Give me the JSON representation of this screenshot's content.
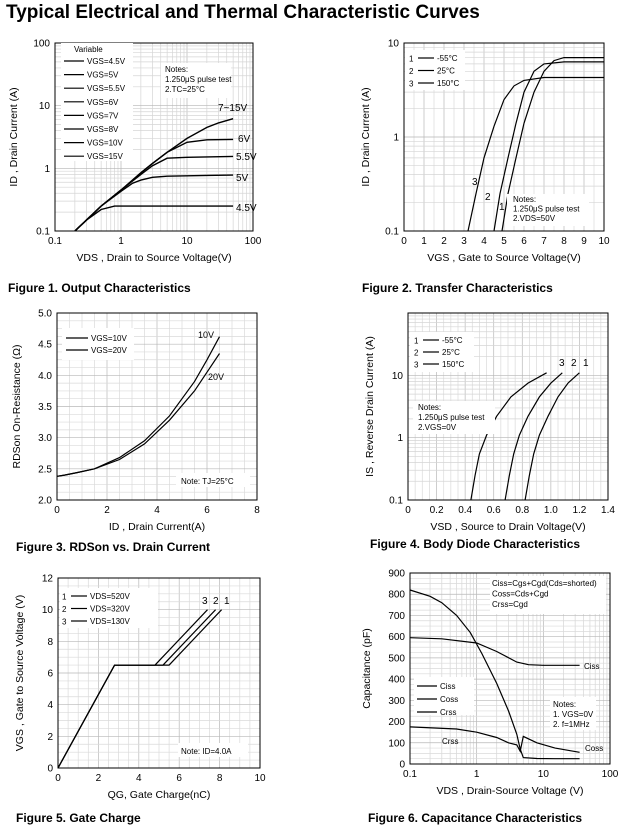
{
  "page": {
    "title": "Typical Electrical and Thermal Characteristic Curves",
    "captions": [
      "Figure 1. Output Characteristics",
      "Figure 2. Transfer Characteristics",
      "Figure 3. RDSon vs. Drain Current",
      "Figure 4. Body Diode Characteristics",
      "Figure 5. Gate Charge",
      "Figure 6. Capacitance Characteristics"
    ]
  },
  "chart_data": [
    {
      "id": "fig1",
      "type": "line",
      "x_scale": "log",
      "y_scale": "log",
      "xlim": [
        0.1,
        100
      ],
      "ylim": [
        0.1,
        100
      ],
      "xticks": [
        "0.1",
        "1",
        "10",
        "100"
      ],
      "yticks": [
        "0.1",
        "1",
        "10",
        "100"
      ],
      "xlabel": "VDS , Drain to Source Voltage(V)",
      "ylabel": "ID , Drain Current (A)",
      "legend_title": "Variable",
      "legend": [
        "VGS=4.5V",
        "VGS=5V",
        "VGS=5.5V",
        "VGS=6V",
        "VGS=7V",
        "VGS=8V",
        "VGS=10V",
        "VGS=15V"
      ],
      "notes": [
        "Notes:",
        "1.250μS pulse test",
        "2.TC=25°C"
      ],
      "series": [
        {
          "label": "7~15V",
          "x": [
            0.2,
            0.3,
            0.5,
            1,
            2,
            3,
            5,
            10,
            20,
            30,
            50
          ],
          "y": [
            0.1,
            0.15,
            0.25,
            0.45,
            0.85,
            1.2,
            1.8,
            3,
            4.5,
            5.3,
            6.2
          ]
        },
        {
          "label": "6V",
          "x": [
            0.2,
            0.3,
            0.5,
            1,
            2,
            3,
            5,
            10,
            20,
            50
          ],
          "y": [
            0.1,
            0.15,
            0.25,
            0.45,
            0.85,
            1.2,
            1.8,
            2.6,
            2.85,
            2.9
          ]
        },
        {
          "label": "5.5V",
          "x": [
            0.2,
            0.3,
            0.5,
            1,
            2,
            3,
            5,
            10,
            20,
            50
          ],
          "y": [
            0.1,
            0.15,
            0.25,
            0.45,
            0.8,
            1.1,
            1.45,
            1.5,
            1.52,
            1.55
          ]
        },
        {
          "label": "5V",
          "x": [
            0.2,
            0.3,
            0.5,
            1,
            1.5,
            2,
            3,
            5,
            10,
            20,
            50
          ],
          "y": [
            0.1,
            0.15,
            0.25,
            0.43,
            0.58,
            0.65,
            0.72,
            0.75,
            0.76,
            0.77,
            0.78
          ]
        },
        {
          "label": "4.5V",
          "x": [
            0.2,
            0.3,
            0.5,
            0.8,
            1,
            2,
            5,
            10,
            50
          ],
          "y": [
            0.1,
            0.15,
            0.22,
            0.25,
            0.25,
            0.25,
            0.25,
            0.25,
            0.25
          ]
        }
      ]
    },
    {
      "id": "fig2",
      "type": "line",
      "x_scale": "linear",
      "y_scale": "log",
      "xlim": [
        0,
        10
      ],
      "ylim": [
        0.1,
        10
      ],
      "xticks": [
        "0",
        "1",
        "2",
        "3",
        "4",
        "5",
        "6",
        "7",
        "8",
        "9",
        "10"
      ],
      "yticks": [
        "0.1",
        "1",
        "10"
      ],
      "xlabel": "VGS , Gate to Source Voltage(V)",
      "ylabel": "ID , Drain Current (A)",
      "legend": [
        "-55°C",
        "25°C",
        "150°C"
      ],
      "notes": [
        "Notes:",
        "1.250μS pulse test",
        "2.VDS=50V"
      ],
      "series": [
        {
          "label": "1",
          "x": [
            4.9,
            5.2,
            5.6,
            6,
            6.5,
            7,
            7.5,
            8,
            9,
            10
          ],
          "y": [
            0.1,
            0.25,
            0.6,
            1.4,
            3,
            5,
            6.5,
            7,
            7,
            7
          ]
        },
        {
          "label": "2",
          "x": [
            4.5,
            4.8,
            5.2,
            5.6,
            6,
            6.5,
            7,
            8,
            9,
            10
          ],
          "y": [
            0.1,
            0.25,
            0.6,
            1.4,
            3,
            5,
            6,
            6.3,
            6.3,
            6.3
          ]
        },
        {
          "label": "3",
          "x": [
            3.2,
            3.6,
            4,
            4.5,
            5,
            5.5,
            6,
            7,
            8,
            10
          ],
          "y": [
            0.1,
            0.25,
            0.6,
            1.3,
            2.5,
            3.5,
            4,
            4.3,
            4.3,
            4.3
          ]
        }
      ]
    },
    {
      "id": "fig3",
      "type": "line",
      "x_scale": "linear",
      "y_scale": "linear",
      "xlim": [
        0,
        8
      ],
      "ylim": [
        2.0,
        5.0
      ],
      "xticks": [
        "0",
        "2",
        "4",
        "6",
        "8"
      ],
      "yticks": [
        "2.0",
        "2.5",
        "3.0",
        "3.5",
        "4.0",
        "4.5",
        "5.0"
      ],
      "xlabel": "ID , Drain Current(A)",
      "ylabel": "RDSon On-Resistance (Ω)",
      "legend": [
        "VGS=10V",
        "VGS=20V"
      ],
      "notes": [
        "Note: TJ=25°C"
      ],
      "series": [
        {
          "label": "10V",
          "x": [
            0,
            0.3,
            0.8,
            1.5,
            2.5,
            3.5,
            4.5,
            5.5,
            6,
            6.5
          ],
          "y": [
            2.38,
            2.4,
            2.44,
            2.5,
            2.68,
            2.95,
            3.35,
            3.9,
            4.25,
            4.62
          ]
        },
        {
          "label": "20V",
          "x": [
            0,
            0.3,
            0.8,
            1.5,
            2.5,
            3.5,
            4.5,
            5.5,
            6,
            6.5
          ],
          "y": [
            2.38,
            2.4,
            2.44,
            2.5,
            2.65,
            2.9,
            3.28,
            3.75,
            4.05,
            4.35
          ]
        }
      ]
    },
    {
      "id": "fig4",
      "type": "line",
      "x_scale": "linear",
      "y_scale": "log",
      "xlim": [
        0,
        1.4
      ],
      "ylim": [
        0.1,
        100
      ],
      "xticks": [
        "0",
        "0.2",
        "0.4",
        "0.6",
        "0.8",
        "1.0",
        "1.2",
        "1.4"
      ],
      "yticks": [
        "0.1",
        "1",
        "10"
      ],
      "xlabel": "VSD , Source to Drain Voltage(V)",
      "ylabel": "IS , Reverse Drain Current (A)",
      "legend": [
        "-55°C",
        "25°C",
        "150°C"
      ],
      "notes": [
        "Notes:",
        "1.250μS pulse test",
        "2.VGS=0V"
      ],
      "series": [
        {
          "label": "1",
          "x": [
            0.82,
            0.85,
            0.88,
            0.92,
            0.98,
            1.05,
            1.12,
            1.2
          ],
          "y": [
            0.1,
            0.25,
            0.55,
            1.1,
            2.2,
            4.5,
            7.5,
            11
          ]
        },
        {
          "label": "2",
          "x": [
            0.68,
            0.71,
            0.74,
            0.78,
            0.84,
            0.92,
            1.0,
            1.08
          ],
          "y": [
            0.1,
            0.25,
            0.55,
            1.1,
            2.2,
            4.5,
            7.5,
            11
          ]
        },
        {
          "label": "3",
          "x": [
            0.44,
            0.47,
            0.5,
            0.55,
            0.62,
            0.72,
            0.84,
            0.97
          ],
          "y": [
            0.1,
            0.25,
            0.55,
            1.1,
            2.2,
            4.5,
            7.5,
            11
          ]
        }
      ]
    },
    {
      "id": "fig5",
      "type": "line",
      "x_scale": "linear",
      "y_scale": "linear",
      "xlim": [
        0,
        10
      ],
      "ylim": [
        0,
        12
      ],
      "xticks": [
        "0",
        "2",
        "4",
        "6",
        "8",
        "10"
      ],
      "yticks": [
        "0",
        "2",
        "4",
        "6",
        "8",
        "10",
        "12"
      ],
      "xlabel": "QG, Gate Charge(nC)",
      "ylabel": "VGS , Gate to Source Voltage (V)",
      "legend": [
        "VDS=520V",
        "VDS=320V",
        "VDS=130V"
      ],
      "notes": [
        "Note: ID=4.0A"
      ],
      "series": [
        {
          "label": "1",
          "x": [
            0,
            2.8,
            5.5,
            8.1
          ],
          "y": [
            0,
            6.5,
            6.5,
            10
          ]
        },
        {
          "label": "2",
          "x": [
            0,
            2.8,
            5.2,
            7.8
          ],
          "y": [
            0,
            6.5,
            6.5,
            10
          ]
        },
        {
          "label": "3",
          "x": [
            0,
            2.8,
            4.8,
            7.4
          ],
          "y": [
            0,
            6.5,
            6.5,
            10
          ]
        }
      ]
    },
    {
      "id": "fig6",
      "type": "line",
      "x_scale": "log",
      "y_scale": "linear",
      "xlim": [
        0.1,
        100
      ],
      "ylim": [
        0,
        900
      ],
      "xticks": [
        "0.1",
        "1",
        "10",
        "100"
      ],
      "yticks": [
        "0",
        "100",
        "200",
        "300",
        "400",
        "500",
        "600",
        "700",
        "800",
        "900"
      ],
      "xlabel": "VDS , Drain-Source Voltage (V)",
      "ylabel": "Capacitance (pF)",
      "legend": [
        "Ciss",
        "Coss",
        "Crss"
      ],
      "formulas": [
        "Ciss=Cgs+Cgd(Cds=shorted)",
        "Coss=Cds+Cgd",
        "Crss=Cgd"
      ],
      "notes": [
        "Notes:",
        "1. VGS=0V",
        "2. f=1MHz"
      ],
      "series": [
        {
          "label": "Ciss",
          "x": [
            0.1,
            0.3,
            1,
            2,
            4,
            6,
            10,
            20,
            35
          ],
          "y": [
            595,
            590,
            570,
            530,
            480,
            468,
            465,
            465,
            465
          ]
        },
        {
          "label": "Coss",
          "x": [
            0.1,
            0.2,
            0.3,
            0.5,
            0.8,
            1.2,
            2,
            3,
            4,
            4.5,
            5,
            8,
            15,
            35
          ],
          "y": [
            820,
            790,
            760,
            700,
            620,
            520,
            380,
            250,
            140,
            70,
            30,
            26,
            25,
            25
          ]
        },
        {
          "label": "Crss",
          "x": [
            0.1,
            0.5,
            1,
            2,
            3,
            4,
            4.5,
            5,
            8,
            15,
            35
          ],
          "y": [
            175,
            165,
            150,
            125,
            100,
            90,
            60,
            130,
            100,
            75,
            55
          ]
        }
      ]
    }
  ]
}
